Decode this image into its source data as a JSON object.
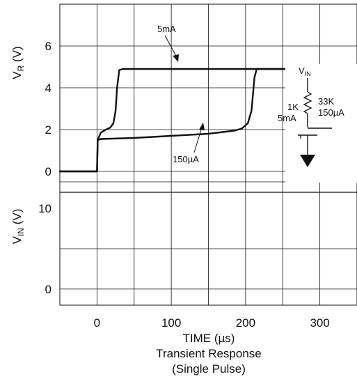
{
  "chart_data": {
    "type": "line",
    "xlabel": "TIME (µs)",
    "caption_line1": "Transient Response",
    "caption_line2": "(Single Pulse)",
    "x_ticks": [
      0,
      100,
      200,
      300
    ],
    "x_tick_labels": [
      "0",
      "100",
      "200",
      "300"
    ],
    "xlim": [
      -50,
      350
    ],
    "grid": true,
    "panels": [
      {
        "ylabel_main": "V",
        "ylabel_sub": "R",
        "ylabel_unit": "(V)",
        "ylim": [
          -1,
          8
        ],
        "y_ticks": [
          0,
          2,
          4,
          6
        ],
        "y_tick_labels": [
          "0",
          "2",
          "4",
          "6"
        ],
        "series": [
          {
            "annotation": "5mA",
            "x": [
              -50,
              0,
              1,
              5,
              12,
              18,
              22,
              25,
              27,
              30,
              35,
              60,
              100,
              150,
              200,
              250,
              300,
              350
            ],
            "y": [
              0,
              0,
              1.5,
              1.85,
              2.0,
              2.1,
              2.3,
              2.9,
              4.0,
              4.85,
              4.9,
              4.9,
              4.9,
              4.9,
              4.9,
              4.9,
              4.9,
              4.9
            ]
          },
          {
            "annotation": "150µA",
            "x": [
              -50,
              0,
              1,
              5,
              50,
              100,
              150,
              185,
              195,
              203,
              208,
              212,
              215,
              230,
              300,
              350
            ],
            "y": [
              0,
              0,
              1.5,
              1.55,
              1.6,
              1.7,
              1.8,
              1.95,
              2.05,
              2.3,
              2.9,
              4.5,
              4.9,
              4.9,
              4.9,
              4.9
            ]
          }
        ]
      },
      {
        "ylabel_main": "V",
        "ylabel_sub": "IN",
        "ylabel_unit": "(V)",
        "ylim": [
          -2,
          12
        ],
        "y_ticks": [
          10,
          0
        ],
        "y_tick_labels": [
          "10",
          "0"
        ]
      }
    ]
  },
  "circuit": {
    "vin_main": "V",
    "vin_sub": "IN",
    "left_label_1": "1K",
    "left_label_2": "5mA",
    "right_label_1": "33K",
    "right_label_2": "150µA"
  }
}
